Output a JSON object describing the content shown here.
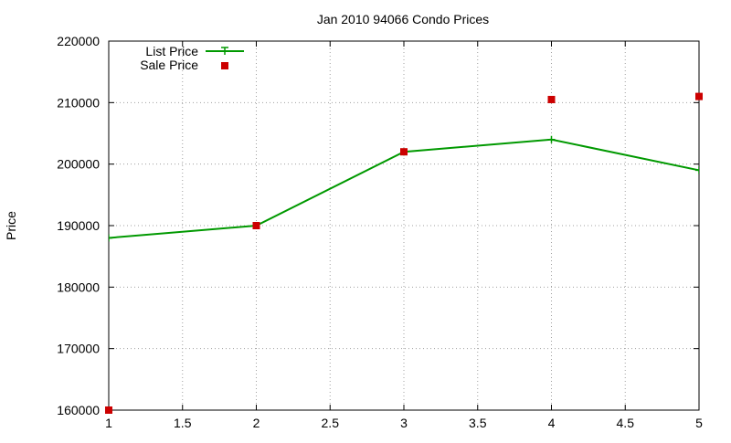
{
  "chart_data": {
    "type": "line",
    "title": "Jan 2010 94066 Condo Prices",
    "xlabel": "",
    "ylabel": "Price",
    "xlim": [
      1,
      5
    ],
    "ylim": [
      160000,
      220000
    ],
    "x_ticks": [
      1,
      1.5,
      2,
      2.5,
      3,
      3.5,
      4,
      4.5,
      5
    ],
    "x_tick_labels": [
      "1",
      "1.5",
      "2",
      "2.5",
      "3",
      "3.5",
      "4",
      "4.5",
      "5"
    ],
    "y_ticks": [
      160000,
      170000,
      180000,
      190000,
      200000,
      210000,
      220000
    ],
    "y_tick_labels": [
      "160000",
      "170000",
      "180000",
      "190000",
      "200000",
      "210000",
      "220000"
    ],
    "grid": true,
    "legend_position": "top-left",
    "series": [
      {
        "name": "List Price",
        "style": "line-with-plus-markers",
        "color": "#009900",
        "x": [
          1,
          2,
          3,
          4,
          5
        ],
        "y": [
          188000,
          190000,
          202000,
          204000,
          199000
        ]
      },
      {
        "name": "Sale Price",
        "style": "square-markers",
        "color": "#cc0000",
        "x": [
          1,
          2,
          3,
          4,
          5
        ],
        "y": [
          160000,
          190000,
          202000,
          210500,
          211000
        ]
      }
    ]
  }
}
